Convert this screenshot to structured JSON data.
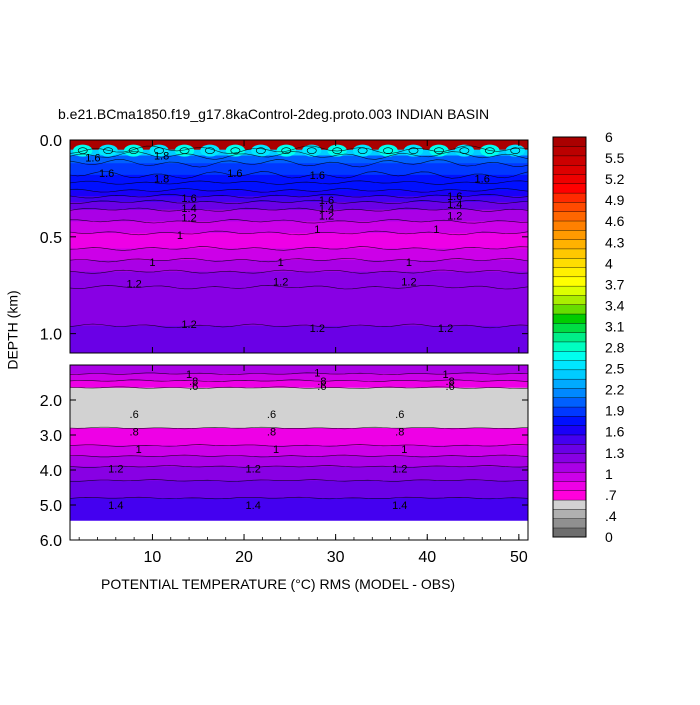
{
  "chart_data": {
    "type": "heatmap",
    "title": "b.e21.BCma1850.f19_g17.8kaControl-2deg.proto.003 INDIAN BASIN",
    "xlabel": "POTENTIAL TEMPERATURE (°C) RMS (MODEL - OBS)",
    "ylabel": "DEPTH (km)",
    "xlim": [
      1,
      51
    ],
    "x_ticks": [
      10,
      20,
      30,
      40,
      50
    ],
    "x_tick_labels": [
      "10",
      "20",
      "30",
      "40",
      "50"
    ],
    "upper_panel": {
      "ylim": [
        0.0,
        1.1
      ],
      "y_ticks": [
        0.0,
        0.5,
        1.0
      ],
      "y_tick_labels": [
        "0.0",
        "0.5",
        "1.0"
      ],
      "bands": [
        {
          "top": 0.0,
          "bottom": 0.05,
          "value": 6.0
        },
        {
          "top": 0.05,
          "bottom": 0.08,
          "value": 2.4
        },
        {
          "top": 0.08,
          "bottom": 0.12,
          "value": 2.0
        },
        {
          "top": 0.12,
          "bottom": 0.18,
          "value": 1.9
        },
        {
          "top": 0.18,
          "bottom": 0.22,
          "value": 1.8
        },
        {
          "top": 0.22,
          "bottom": 0.26,
          "value": 1.7
        },
        {
          "top": 0.26,
          "bottom": 0.29,
          "value": 1.6
        },
        {
          "top": 0.29,
          "bottom": 0.32,
          "value": 1.45
        },
        {
          "top": 0.32,
          "bottom": 0.36,
          "value": 1.3
        },
        {
          "top": 0.36,
          "bottom": 0.42,
          "value": 1.1
        },
        {
          "top": 0.42,
          "bottom": 0.48,
          "value": 0.95
        },
        {
          "top": 0.48,
          "bottom": 0.56,
          "value": 0.75
        },
        {
          "top": 0.56,
          "bottom": 0.62,
          "value": 0.95
        },
        {
          "top": 0.62,
          "bottom": 0.68,
          "value": 1.05
        },
        {
          "top": 0.68,
          "bottom": 0.76,
          "value": 1.15
        },
        {
          "top": 0.76,
          "bottom": 0.96,
          "value": 1.25
        },
        {
          "top": 0.96,
          "bottom": 1.1,
          "value": 1.3
        }
      ],
      "contour_labels": [
        {
          "x": 3.5,
          "y": 0.09,
          "text": "1.6"
        },
        {
          "x": 11,
          "y": 0.08,
          "text": "1.8"
        },
        {
          "x": 5,
          "y": 0.17,
          "text": "1.6"
        },
        {
          "x": 11,
          "y": 0.2,
          "text": "1.8"
        },
        {
          "x": 19,
          "y": 0.17,
          "text": "1.6"
        },
        {
          "x": 28,
          "y": 0.18,
          "text": "1.6"
        },
        {
          "x": 46,
          "y": 0.2,
          "text": "1.6"
        },
        {
          "x": 14,
          "y": 0.3,
          "text": "1.6"
        },
        {
          "x": 14,
          "y": 0.35,
          "text": "1.4"
        },
        {
          "x": 14,
          "y": 0.4,
          "text": "1.2"
        },
        {
          "x": 29,
          "y": 0.31,
          "text": "1.6"
        },
        {
          "x": 29,
          "y": 0.35,
          "text": "1.4"
        },
        {
          "x": 29,
          "y": 0.39,
          "text": "1.2"
        },
        {
          "x": 43,
          "y": 0.29,
          "text": "1.6"
        },
        {
          "x": 43,
          "y": 0.33,
          "text": "1.4"
        },
        {
          "x": 43,
          "y": 0.39,
          "text": "1.2"
        },
        {
          "x": 13,
          "y": 0.49,
          "text": "1"
        },
        {
          "x": 28,
          "y": 0.46,
          "text": "1"
        },
        {
          "x": 41,
          "y": 0.46,
          "text": "1"
        },
        {
          "x": 10,
          "y": 0.63,
          "text": "1"
        },
        {
          "x": 24,
          "y": 0.63,
          "text": "1"
        },
        {
          "x": 38,
          "y": 0.63,
          "text": "1"
        },
        {
          "x": 8,
          "y": 0.74,
          "text": "1.2"
        },
        {
          "x": 24,
          "y": 0.73,
          "text": "1.2"
        },
        {
          "x": 38,
          "y": 0.73,
          "text": "1.2"
        },
        {
          "x": 14,
          "y": 0.95,
          "text": "1.2"
        },
        {
          "x": 28,
          "y": 0.97,
          "text": "1.2"
        },
        {
          "x": 42,
          "y": 0.97,
          "text": "1.2"
        }
      ]
    },
    "lower_panel": {
      "ylim": [
        1.0,
        6.0
      ],
      "y_ticks": [
        2.0,
        3.0,
        4.0,
        5.0,
        6.0
      ],
      "y_tick_labels": [
        "2.0",
        "3.0",
        "4.0",
        "5.0",
        "6.0"
      ],
      "data_bottom": 5.45,
      "bands": [
        {
          "top": 1.0,
          "bottom": 1.25,
          "value": 1.1
        },
        {
          "top": 1.25,
          "bottom": 1.45,
          "value": 0.95
        },
        {
          "top": 1.45,
          "bottom": 1.65,
          "value": 0.8
        },
        {
          "top": 1.65,
          "bottom": 2.8,
          "value": 0.55
        },
        {
          "top": 2.8,
          "bottom": 3.3,
          "value": 0.75
        },
        {
          "top": 3.3,
          "bottom": 3.6,
          "value": 0.9
        },
        {
          "top": 3.6,
          "bottom": 3.9,
          "value": 1.05
        },
        {
          "top": 3.9,
          "bottom": 4.3,
          "value": 1.2
        },
        {
          "top": 4.3,
          "bottom": 4.8,
          "value": 1.3
        },
        {
          "top": 4.8,
          "bottom": 5.45,
          "value": 1.45
        }
      ],
      "contour_labels": [
        {
          "x": 14,
          "y": 1.25,
          "text": "1"
        },
        {
          "x": 28,
          "y": 1.22,
          "text": "1"
        },
        {
          "x": 42,
          "y": 1.25,
          "text": "1"
        },
        {
          "x": 14.5,
          "y": 1.45,
          "text": ".8"
        },
        {
          "x": 28.5,
          "y": 1.45,
          "text": ".8"
        },
        {
          "x": 42.5,
          "y": 1.45,
          "text": ".8"
        },
        {
          "x": 14.5,
          "y": 1.6,
          "text": ".6"
        },
        {
          "x": 28.5,
          "y": 1.6,
          "text": ".6"
        },
        {
          "x": 42.5,
          "y": 1.6,
          "text": ".6"
        },
        {
          "x": 8,
          "y": 2.4,
          "text": ".6"
        },
        {
          "x": 23,
          "y": 2.4,
          "text": ".6"
        },
        {
          "x": 37,
          "y": 2.4,
          "text": ".6"
        },
        {
          "x": 8,
          "y": 2.9,
          "text": ".8"
        },
        {
          "x": 23,
          "y": 2.9,
          "text": ".8"
        },
        {
          "x": 37,
          "y": 2.9,
          "text": ".8"
        },
        {
          "x": 8.5,
          "y": 3.4,
          "text": "1"
        },
        {
          "x": 23.5,
          "y": 3.4,
          "text": "1"
        },
        {
          "x": 37.5,
          "y": 3.4,
          "text": "1"
        },
        {
          "x": 6,
          "y": 3.95,
          "text": "1.2"
        },
        {
          "x": 21,
          "y": 3.95,
          "text": "1.2"
        },
        {
          "x": 37,
          "y": 3.95,
          "text": "1.2"
        },
        {
          "x": 6,
          "y": 5.0,
          "text": "1.4"
        },
        {
          "x": 21,
          "y": 5.0,
          "text": "1.4"
        },
        {
          "x": 37,
          "y": 5.0,
          "text": "1.4"
        }
      ]
    },
    "colorbar": {
      "min": 0,
      "max": 6,
      "tick_labels": [
        "6",
        "5.5",
        "5.2",
        "4.9",
        "4.6",
        "4.3",
        "4",
        "3.7",
        "3.4",
        "3.1",
        "2.8",
        "2.5",
        "2.2",
        "1.9",
        "1.6",
        "1.3",
        "1",
        ".7",
        ".4",
        "0"
      ],
      "colors": [
        "#6e6e6e",
        "#909090",
        "#b0b0b0",
        "#d2d2d2",
        "#ff00dc",
        "#ee00e6",
        "#cc00e8",
        "#aa00e6",
        "#8800e4",
        "#6a00e6",
        "#4400f0",
        "#1a00f8",
        "#0010ff",
        "#0038ff",
        "#0060ff",
        "#0088ff",
        "#00aaff",
        "#00ccff",
        "#00e6ff",
        "#00ffee",
        "#00ffc0",
        "#00ee88",
        "#00dd44",
        "#00cc00",
        "#66dd00",
        "#aaee00",
        "#ddff00",
        "#ffff00",
        "#fff000",
        "#ffdd00",
        "#ffc800",
        "#ffb200",
        "#ff9a00",
        "#ff8000",
        "#ff6600",
        "#ff4a00",
        "#ff2a00",
        "#ff0000",
        "#ee0000",
        "#dd0000",
        "#cc0000",
        "#bb0000",
        "#aa0000"
      ]
    }
  }
}
